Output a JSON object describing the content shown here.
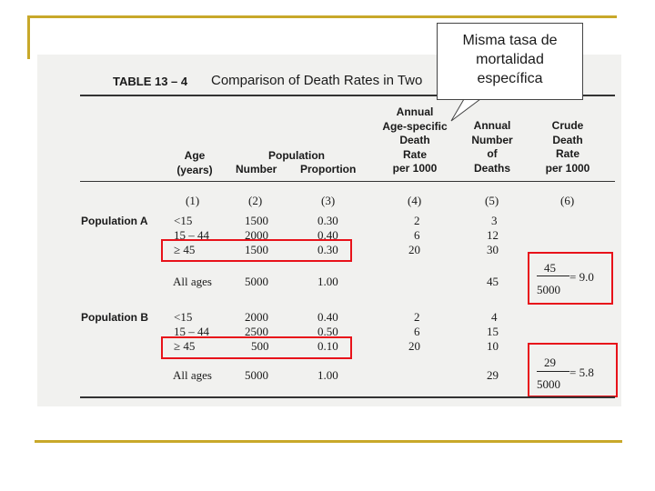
{
  "callout": {
    "lines": [
      "Misma tasa de",
      "mortalidad",
      "específica"
    ]
  },
  "table": {
    "label": "TABLE  13 – 4",
    "title": "Comparison of Death Rates in Two",
    "headers": {
      "age": [
        "Age",
        "(years)"
      ],
      "population": "Population",
      "number": "Number",
      "proportion": "Proportion",
      "annual_age_specific": [
        "Annual",
        "Age-specific",
        "Death",
        "Rate",
        "per 1000"
      ],
      "annual_number": [
        "Annual",
        "Number",
        "of",
        "Deaths"
      ],
      "crude": [
        "Crude",
        "Death",
        "Rate",
        "per 1000"
      ]
    },
    "col_numbers": [
      "(1)",
      "(2)",
      "(3)",
      "(4)",
      "(5)",
      "(6)"
    ],
    "population_a": {
      "label": "Population A",
      "rows": [
        {
          "age": "<15",
          "number": "1500",
          "proportion": "0.30",
          "rate": "2",
          "deaths": "3"
        },
        {
          "age": "15 – 44",
          "number": "2000",
          "proportion": "0.40",
          "rate": "6",
          "deaths": "12"
        },
        {
          "age": "≥ 45",
          "number": "1500",
          "proportion": "0.30",
          "rate": "20",
          "deaths": "30"
        }
      ],
      "all": {
        "age": "All ages",
        "number": "5000",
        "proportion": "1.00",
        "deaths": "45"
      },
      "crude": {
        "num": "45",
        "den": "5000",
        "result": "= 9.0"
      }
    },
    "population_b": {
      "label": "Population B",
      "rows": [
        {
          "age": "<15",
          "number": "2000",
          "proportion": "0.40",
          "rate": "2",
          "deaths": "4"
        },
        {
          "age": "15 – 44",
          "number": "2500",
          "proportion": "0.50",
          "rate": "6",
          "deaths": "15"
        },
        {
          "age": "≥ 45",
          "number": "500",
          "proportion": "0.10",
          "rate": "20",
          "deaths": "10"
        }
      ],
      "all": {
        "age": "All ages",
        "number": "5000",
        "proportion": "1.00",
        "deaths": "29"
      },
      "crude": {
        "num": "29",
        "den": "5000",
        "result": "= 5.8"
      }
    }
  },
  "colors": {
    "accent_gold": "#c8a82a",
    "highlight_red": "#e8121a"
  }
}
